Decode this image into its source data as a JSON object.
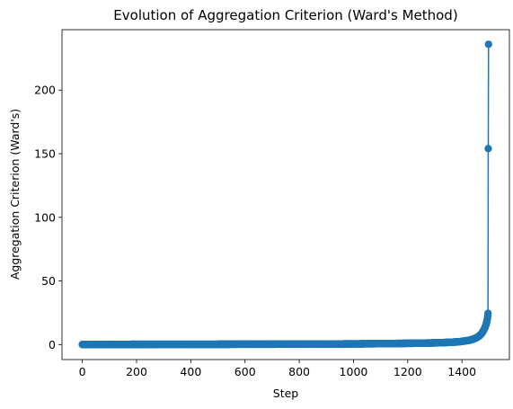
{
  "chart_data": {
    "type": "line",
    "title": "Evolution of Aggregation Criterion (Ward's Method)",
    "xlabel": "Step",
    "ylabel": "Aggregation Criterion (Ward's)",
    "xlim": [
      -75,
      1575
    ],
    "ylim": [
      -11.8,
      247.5
    ],
    "xticks": [
      0,
      200,
      400,
      600,
      800,
      1000,
      1200,
      1400
    ],
    "yticks": [
      0,
      50,
      100,
      150,
      200
    ],
    "grid": false,
    "legend": "none",
    "color": "#1f77b4",
    "markers": "circle",
    "series": [
      {
        "n_points": 1499,
        "points": [
          [
            0,
            0.05
          ],
          [
            100,
            0.1
          ],
          [
            200,
            0.12
          ],
          [
            300,
            0.15
          ],
          [
            400,
            0.18
          ],
          [
            500,
            0.2
          ],
          [
            600,
            0.25
          ],
          [
            700,
            0.3
          ],
          [
            800,
            0.35
          ],
          [
            900,
            0.42
          ],
          [
            1000,
            0.5
          ],
          [
            1050,
            0.6
          ],
          [
            1100,
            0.7
          ],
          [
            1150,
            0.8
          ],
          [
            1200,
            0.95
          ],
          [
            1250,
            1.1
          ],
          [
            1300,
            1.3
          ],
          [
            1330,
            1.5
          ],
          [
            1360,
            1.8
          ],
          [
            1390,
            2.2
          ],
          [
            1410,
            2.8
          ],
          [
            1430,
            3.5
          ],
          [
            1445,
            4.5
          ],
          [
            1455,
            5.5
          ],
          [
            1465,
            7.0
          ],
          [
            1472,
            8.5
          ],
          [
            1478,
            10.5
          ],
          [
            1483,
            12.5
          ],
          [
            1487,
            14.5
          ],
          [
            1490,
            16.5
          ],
          [
            1492,
            18.5
          ],
          [
            1494,
            20.5
          ],
          [
            1495,
            22.5
          ],
          [
            1496,
            24.5
          ],
          [
            1497,
            154.0
          ],
          [
            1498,
            236.0
          ]
        ]
      }
    ]
  }
}
